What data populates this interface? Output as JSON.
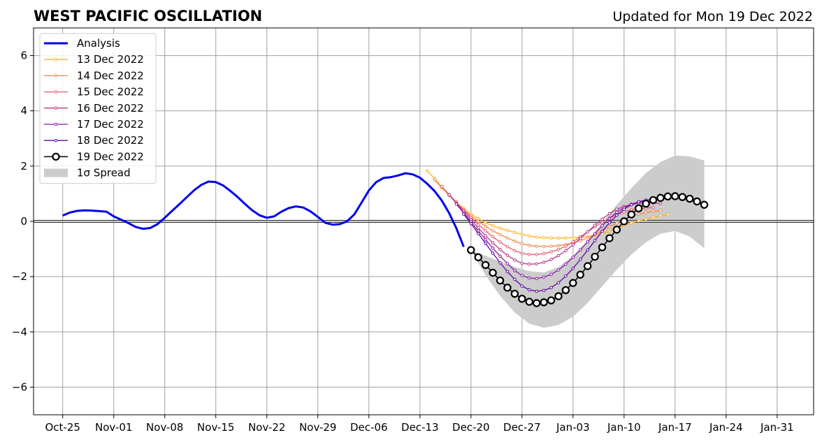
{
  "chart_data": {
    "type": "line",
    "title": "WEST PACIFIC OSCILLATION",
    "subtitle": "Updated for Mon 19 Dec 2022",
    "xlabel": "",
    "ylabel": "",
    "ylim": [
      -7,
      7
    ],
    "yticks": [
      -6,
      -4,
      -2,
      0,
      2,
      4,
      6
    ],
    "ytick_labels": [
      "−6",
      "−4",
      "−2",
      "0",
      "2",
      "4",
      "6"
    ],
    "xlim": [
      "2022-10-21",
      "2023-02-05"
    ],
    "xticks": [
      "2022-10-25",
      "2022-11-01",
      "2022-11-08",
      "2022-11-15",
      "2022-11-22",
      "2022-11-29",
      "2022-12-06",
      "2022-12-13",
      "2022-12-20",
      "2022-12-27",
      "2023-01-03",
      "2023-01-10",
      "2023-01-17",
      "2023-01-24",
      "2023-01-31"
    ],
    "xtick_labels": [
      "Oct-25",
      "Nov-01",
      "Nov-08",
      "Nov-15",
      "Nov-22",
      "Nov-29",
      "Dec-06",
      "Dec-13",
      "Dec-20",
      "Dec-27",
      "Jan-03",
      "Jan-10",
      "Jan-17",
      "Jan-24",
      "Jan-31"
    ],
    "grid": true,
    "legend_position": "top-left",
    "analysis": {
      "name": "Analysis",
      "color": "#0000ee",
      "x": [
        "2022-10-25",
        "2022-10-26",
        "2022-10-27",
        "2022-10-28",
        "2022-10-29",
        "2022-10-30",
        "2022-10-31",
        "2022-11-01",
        "2022-11-02",
        "2022-11-03",
        "2022-11-04",
        "2022-11-05",
        "2022-11-06",
        "2022-11-07",
        "2022-11-08",
        "2022-11-09",
        "2022-11-10",
        "2022-11-11",
        "2022-11-12",
        "2022-11-13",
        "2022-11-14",
        "2022-11-15",
        "2022-11-16",
        "2022-11-17",
        "2022-11-18",
        "2022-11-19",
        "2022-11-20",
        "2022-11-21",
        "2022-11-22",
        "2022-11-23",
        "2022-11-24",
        "2022-11-25",
        "2022-11-26",
        "2022-11-27",
        "2022-11-28",
        "2022-11-29",
        "2022-11-30",
        "2022-12-01",
        "2022-12-02",
        "2022-12-03",
        "2022-12-04",
        "2022-12-05",
        "2022-12-06",
        "2022-12-07",
        "2022-12-08",
        "2022-12-09",
        "2022-12-10",
        "2022-12-11",
        "2022-12-12",
        "2022-12-13",
        "2022-12-14",
        "2022-12-15",
        "2022-12-16",
        "2022-12-17",
        "2022-12-18",
        "2022-12-19"
      ],
      "values": [
        0.21,
        0.32,
        0.38,
        0.4,
        0.39,
        0.37,
        0.35,
        0.18,
        0.06,
        -0.06,
        -0.2,
        -0.27,
        -0.24,
        -0.1,
        0.13,
        0.38,
        0.62,
        0.87,
        1.12,
        1.32,
        1.44,
        1.42,
        1.3,
        1.1,
        0.88,
        0.63,
        0.4,
        0.22,
        0.13,
        0.18,
        0.35,
        0.48,
        0.54,
        0.5,
        0.36,
        0.16,
        -0.05,
        -0.12,
        -0.1,
        0.0,
        0.25,
        0.68,
        1.12,
        1.42,
        1.57,
        1.6,
        1.66,
        1.74,
        1.7,
        1.58,
        1.36,
        1.1,
        0.75,
        0.3,
        -0.25,
        -0.92
      ]
    },
    "forecast_dates": [
      "2022-12-14",
      "2022-12-15",
      "2022-12-16",
      "2022-12-17",
      "2022-12-18",
      "2022-12-19",
      "2022-12-20",
      "2022-12-21",
      "2022-12-22",
      "2022-12-23",
      "2022-12-24",
      "2022-12-25",
      "2022-12-26",
      "2022-12-27",
      "2022-12-28",
      "2022-12-29",
      "2022-12-30",
      "2022-12-31",
      "2023-01-01",
      "2023-01-02",
      "2023-01-03",
      "2023-01-04",
      "2023-01-05",
      "2023-01-06",
      "2023-01-07",
      "2023-01-08",
      "2023-01-09",
      "2023-01-10",
      "2023-01-11",
      "2023-01-12",
      "2023-01-13",
      "2023-01-14",
      "2023-01-15",
      "2023-01-16",
      "2023-01-17",
      "2023-01-18",
      "2023-01-19",
      "2023-01-20",
      "2023-01-21",
      "2023-01-22"
    ],
    "series": [
      {
        "name": "13 Dec 2022",
        "color": "#ffb020",
        "start_index": 0,
        "values": [
          1.83,
          1.56,
          1.25,
          0.95,
          0.7,
          0.46,
          0.26,
          0.1,
          -0.05,
          -0.16,
          -0.25,
          -0.33,
          -0.4,
          -0.47,
          -0.53,
          -0.57,
          -0.59,
          -0.6,
          -0.61,
          -0.6,
          -0.59,
          -0.57,
          -0.55,
          -0.5,
          -0.44,
          -0.36,
          -0.26,
          -0.15,
          -0.06,
          0.02,
          0.08,
          0.14,
          0.2,
          0.25
        ]
      },
      {
        "name": "14 Dec 2022",
        "color": "#f4844a",
        "start_index": 1,
        "values": [
          1.5,
          1.22,
          0.94,
          0.67,
          0.42,
          0.2,
          0.0,
          -0.18,
          -0.34,
          -0.48,
          -0.6,
          -0.72,
          -0.81,
          -0.87,
          -0.9,
          -0.91,
          -0.9,
          -0.88,
          -0.84,
          -0.78,
          -0.7,
          -0.6,
          -0.48,
          -0.34,
          -0.2,
          -0.06,
          0.07,
          0.18,
          0.26,
          0.32,
          0.36,
          0.4
        ]
      },
      {
        "name": "15 Dec 2022",
        "color": "#e05c6c",
        "start_index": 2,
        "values": [
          1.26,
          0.97,
          0.69,
          0.41,
          0.14,
          -0.11,
          -0.34,
          -0.56,
          -0.75,
          -0.92,
          -1.06,
          -1.16,
          -1.2,
          -1.2,
          -1.17,
          -1.1,
          -1.02,
          -0.9,
          -0.74,
          -0.56,
          -0.38,
          -0.2,
          -0.03,
          0.12,
          0.24,
          0.34,
          0.42,
          0.46,
          0.48,
          0.5
        ]
      },
      {
        "name": "16 Dec 2022",
        "color": "#b8388a",
        "start_index": 3,
        "values": [
          0.96,
          0.65,
          0.36,
          0.06,
          -0.24,
          -0.52,
          -0.78,
          -1.02,
          -1.23,
          -1.4,
          -1.52,
          -1.55,
          -1.54,
          -1.48,
          -1.38,
          -1.24,
          -1.06,
          -0.85,
          -0.62,
          -0.38,
          -0.14,
          0.08,
          0.28,
          0.44,
          0.54,
          0.61,
          0.65,
          0.67,
          0.67,
          0.64
        ]
      },
      {
        "name": "17 Dec 2022",
        "color": "#9018a8",
        "start_index": 4,
        "values": [
          0.62,
          0.3,
          -0.02,
          -0.34,
          -0.66,
          -0.97,
          -1.26,
          -1.53,
          -1.78,
          -1.96,
          -2.05,
          -2.07,
          -2.02,
          -1.92,
          -1.76,
          -1.55,
          -1.3,
          -1.03,
          -0.74,
          -0.45,
          -0.16,
          0.1,
          0.33,
          0.5,
          0.62,
          0.7,
          0.73,
          0.72
        ]
      },
      {
        "name": "18 Dec 2022",
        "color": "#5c0aa0",
        "start_index": 5,
        "values": [
          0.26,
          -0.08,
          -0.44,
          -0.8,
          -1.15,
          -1.5,
          -1.82,
          -2.1,
          -2.34,
          -2.48,
          -2.53,
          -2.5,
          -2.4,
          -2.22,
          -1.98,
          -1.7,
          -1.38,
          -1.04,
          -0.7,
          -0.36,
          -0.05,
          0.22,
          0.44,
          0.6,
          0.71,
          0.77,
          0.79
        ]
      },
      {
        "name": "19 Dec 2022",
        "color": "#000000",
        "start_index": 6,
        "values": [
          -1.04,
          -1.3,
          -1.58,
          -1.86,
          -2.14,
          -2.4,
          -2.62,
          -2.8,
          -2.91,
          -2.96,
          -2.93,
          -2.86,
          -2.71,
          -2.49,
          -2.23,
          -1.93,
          -1.62,
          -1.28,
          -0.94,
          -0.61,
          -0.3,
          0.0,
          0.25,
          0.47,
          0.64,
          0.77,
          0.85,
          0.9,
          0.91,
          0.88,
          0.82,
          0.72,
          0.6
        ]
      }
    ],
    "spread": {
      "name": "1σ Spread",
      "color": "#cccccc",
      "x": [
        "2022-12-20",
        "2022-12-22",
        "2022-12-24",
        "2022-12-26",
        "2022-12-28",
        "2022-12-30",
        "2023-01-01",
        "2023-01-03",
        "2023-01-05",
        "2023-01-07",
        "2023-01-09",
        "2023-01-11",
        "2023-01-13",
        "2023-01-15",
        "2023-01-17",
        "2023-01-19",
        "2023-01-21"
      ],
      "upper": [
        -1.04,
        -1.25,
        -1.45,
        -1.65,
        -1.8,
        -1.85,
        -1.65,
        -1.25,
        -0.7,
        -0.05,
        0.6,
        1.2,
        1.75,
        2.15,
        2.38,
        2.35,
        2.2
      ],
      "lower": [
        -1.04,
        -1.95,
        -2.7,
        -3.3,
        -3.7,
        -3.85,
        -3.75,
        -3.45,
        -2.95,
        -2.35,
        -1.75,
        -1.2,
        -0.75,
        -0.45,
        -0.35,
        -0.55,
        -0.98
      ]
    }
  }
}
